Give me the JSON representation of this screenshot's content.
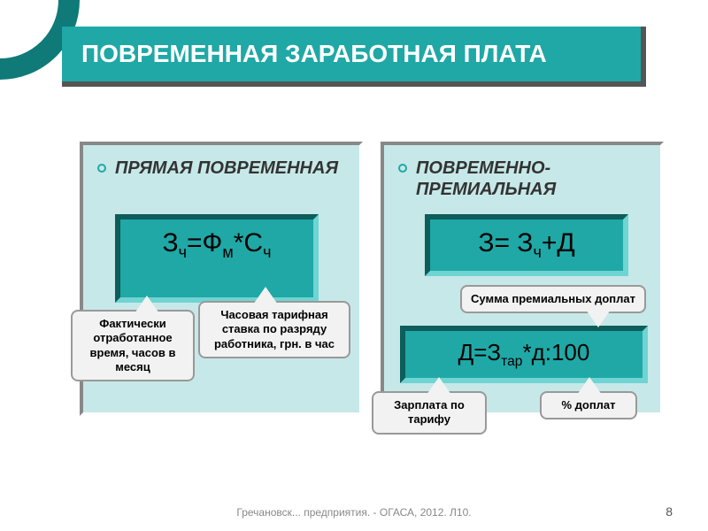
{
  "title": "ПОВРЕМЕННАЯ ЗАРАБОТНАЯ ПЛАТА",
  "left": {
    "heading": "ПРЯМАЯ ПОВРЕМЕННАЯ",
    "formula_html": "З<span class='sub'>ч</span>=Ф<span class='sub'>м</span>*С<span class='sub'>ч</span>"
  },
  "right": {
    "heading": "ПОВРЕМЕННО-ПРЕМИАЛЬНАЯ",
    "formula1_html": "З= З<span class='sub'>ч</span>+Д",
    "formula2_html": "Д=З<span class='sub'>тар</span>*д:100"
  },
  "callouts": {
    "c1": "Фактически отработанное время, часов в месяц",
    "c2": "Часовая тарифная ставка по разряду работника, грн. в час",
    "c3": "Сумма премиальных доплат",
    "c4": "Зарплата по тарифу",
    "c5": "% доплат"
  },
  "footer": "Гречановск... предприятия. - ОГАСА, 2012. Л10.",
  "page": "8",
  "colors": {
    "teal": "#1fa8a6",
    "teal_dark": "#0f7a78",
    "panel_bg": "#c7e8e8",
    "callout_bg": "#f2f2f2"
  }
}
